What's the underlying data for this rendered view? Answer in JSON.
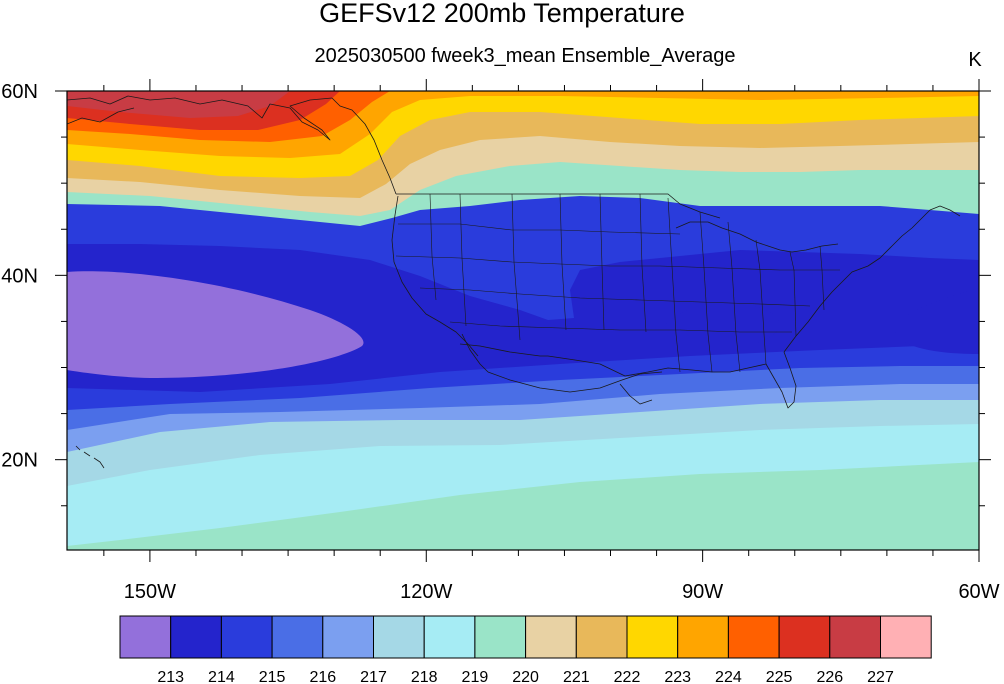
{
  "title": "GEFSv12 200mb Temperature",
  "subtitle": "2025030500 fweek3_mean Ensemble_Average",
  "units": "K",
  "y_ticks": [
    {
      "label": "60N",
      "lat": 60
    },
    {
      "label": "40N",
      "lat": 40
    },
    {
      "label": "20N",
      "lat": 20
    }
  ],
  "x_ticks": [
    {
      "label": "150W",
      "lon": -150
    },
    {
      "label": "120W",
      "lon": -120
    },
    {
      "label": "90W",
      "lon": -90
    },
    {
      "label": "60W",
      "lon": -60
    }
  ],
  "colorbar": {
    "colors": [
      "#9370db",
      "#2424cc",
      "#2a3cdc",
      "#4a6ee6",
      "#7b9ff0",
      "#a5d8e6",
      "#a6ecf4",
      "#9ae4c8",
      "#e8d2a4",
      "#e8b85a",
      "#ffd700",
      "#ffa500",
      "#ff6000",
      "#dc3020",
      "#c83c44",
      "#ffb0b4"
    ],
    "labels": [
      "213",
      "214",
      "215",
      "216",
      "217",
      "218",
      "219",
      "220",
      "221",
      "222",
      "223",
      "224",
      "225",
      "226",
      "227"
    ]
  }
}
